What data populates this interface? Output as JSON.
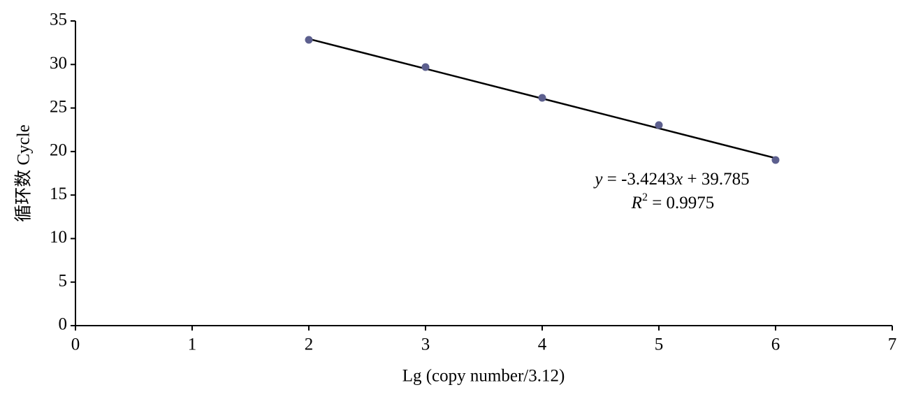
{
  "chart_data": {
    "type": "scatter",
    "x_label": "Lg (copy number/3.12)",
    "y_label": "循环数 Cycle",
    "x": [
      2,
      3,
      4,
      5,
      6
    ],
    "series": [
      {
        "color": "#5c5f8e",
        "values": [
          32.83,
          29.7,
          26.17,
          23.04,
          19.03
        ]
      }
    ],
    "trendline": {
      "slope": -3.4243,
      "intercept": 39.785,
      "xrange": [
        2,
        6
      ],
      "color": "#000000"
    },
    "equation": [
      {
        "text": "y",
        "italic": true
      },
      {
        "text": " = -3.4243"
      },
      {
        "text": "x",
        "italic": true
      },
      {
        "text": " + 39.785"
      }
    ],
    "r_squared": [
      {
        "text": "R",
        "italic": true
      },
      {
        "text": "2",
        "sup": true
      },
      {
        "text": " = 0.9975"
      }
    ],
    "xlim": [
      0,
      7
    ],
    "xticks": [
      0,
      1,
      2,
      3,
      4,
      5,
      6,
      7
    ],
    "ylim": [
      0,
      35
    ],
    "yticks": [
      0,
      5,
      10,
      15,
      20,
      25,
      30,
      35
    ],
    "grid": false
  }
}
